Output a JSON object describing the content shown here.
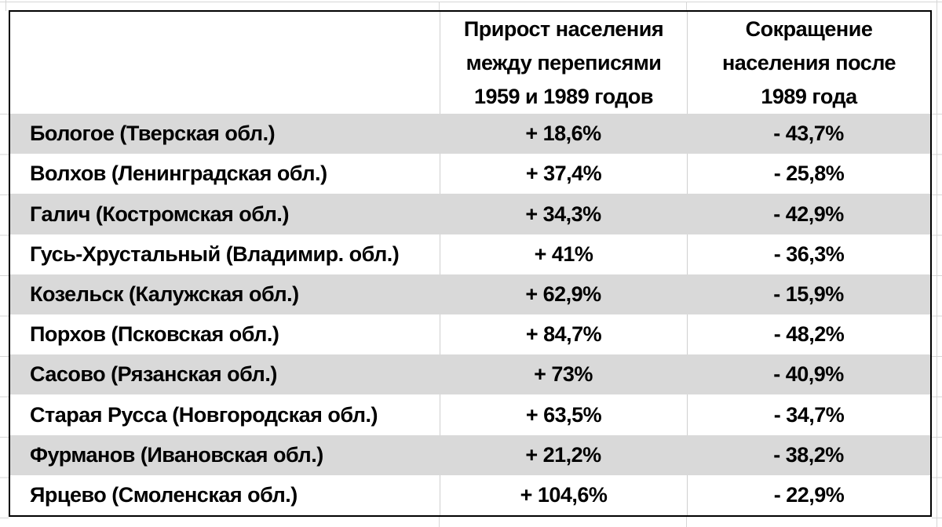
{
  "table": {
    "columns": [
      {
        "label": ""
      },
      {
        "label": "Прирост населения\nмежду переписями\n1959 и 1989 годов"
      },
      {
        "label": "Сокращение\nнаселения после\n1989 года"
      }
    ],
    "rows": [
      {
        "city": "Бологое (Тверская обл.)",
        "growth": "+ 18,6%",
        "decline": "- 43,7%"
      },
      {
        "city": "Волхов (Ленинградская обл.)",
        "growth": "+ 37,4%",
        "decline": "- 25,8%"
      },
      {
        "city": "Галич (Костромская обл.)",
        "growth": "+ 34,3%",
        "decline": "- 42,9%"
      },
      {
        "city": "Гусь-Хрустальный (Владимир. обл.)",
        "growth": "+ 41%",
        "decline": "- 36,3%"
      },
      {
        "city": "Козельск (Калужская обл.)",
        "growth": "+ 62,9%",
        "decline": "- 15,9%"
      },
      {
        "city": "Порхов (Псковская обл.)",
        "growth": "+ 84,7%",
        "decline": "- 48,2%"
      },
      {
        "city": "Сасово (Рязанская обл.)",
        "growth": "+ 73%",
        "decline": "- 40,9%"
      },
      {
        "city": "Старая Русса (Новгородская обл.)",
        "growth": "+ 63,5%",
        "decline": "- 34,7%"
      },
      {
        "city": "Фурманов (Ивановская обл.)",
        "growth": "+ 21,2%",
        "decline": "- 38,2%"
      },
      {
        "city": "Ярцево (Смоленская обл.)",
        "growth": "+ 104,6%",
        "decline": "- 22,9%"
      }
    ]
  },
  "colors": {
    "stripe": "#d9d9d9",
    "table_border": "#000000",
    "gridline": "#d6d6d6",
    "text": "#000000"
  },
  "chart_data": {
    "type": "table",
    "columns": [
      "",
      "Прирост населения между переписями 1959 и 1989 годов",
      "Сокращение населения после 1989 года"
    ],
    "categories": [
      "Бологое (Тверская обл.)",
      "Волхов (Ленинградская обл.)",
      "Галич (Костромская обл.)",
      "Гусь-Хрустальный (Владимир. обл.)",
      "Козельск (Калужская обл.)",
      "Порхов (Псковская обл.)",
      "Сасово (Рязанская обл.)",
      "Старая Русса (Новгородская обл.)",
      "Фурманов (Ивановская обл.)",
      "Ярцево (Смоленская обл.)"
    ],
    "series": [
      {
        "name": "Прирост населения между переписями 1959 и 1989 годов, %",
        "values": [
          18.6,
          37.4,
          34.3,
          41,
          62.9,
          84.7,
          73,
          63.5,
          21.2,
          104.6
        ]
      },
      {
        "name": "Сокращение населения после 1989 года, %",
        "values": [
          -43.7,
          -25.8,
          -42.9,
          -36.3,
          -15.9,
          -48.2,
          -40.9,
          -34.7,
          -38.2,
          -22.9
        ]
      }
    ],
    "layout": {
      "striped_rows": true,
      "first_data_row_striped": true,
      "values_alignment": "center"
    }
  }
}
